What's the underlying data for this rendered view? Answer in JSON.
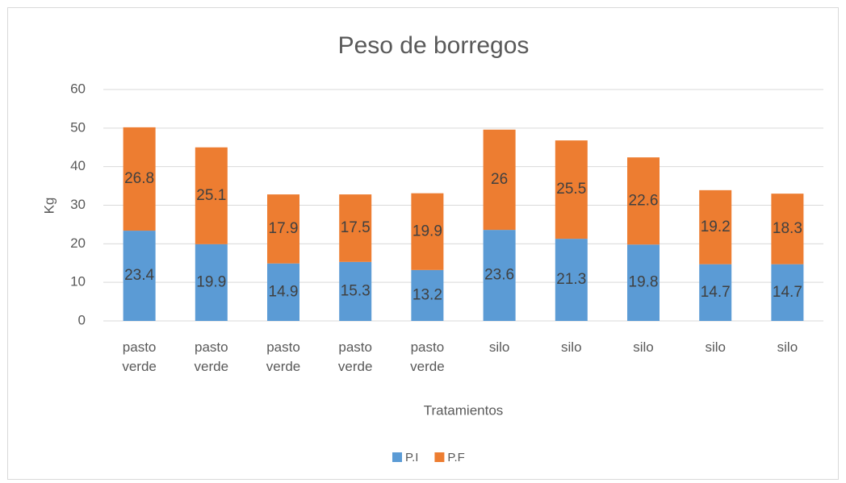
{
  "chart_data": {
    "type": "bar",
    "stacked": true,
    "title": "Peso de borregos",
    "categories": [
      "pasto verde",
      "pasto verde",
      "pasto verde",
      "pasto verde",
      "pasto verde",
      "silo",
      "silo",
      "silo",
      "silo",
      "silo"
    ],
    "series": [
      {
        "name": "P.I",
        "color": "#5b9bd5",
        "values": [
          23.4,
          19.9,
          14.9,
          15.3,
          13.2,
          23.6,
          21.3,
          19.8,
          14.7,
          14.7
        ]
      },
      {
        "name": "P.F",
        "color": "#ed7d31",
        "values": [
          26.8,
          25.1,
          17.9,
          17.5,
          19.9,
          26,
          25.5,
          22.6,
          19.2,
          18.3
        ]
      }
    ],
    "xlabel": "Tratamientos",
    "ylabel": "Kg",
    "ylim": [
      0,
      60
    ],
    "yticks": [
      0,
      10,
      20,
      30,
      40,
      50,
      60
    ],
    "grid": true,
    "legend": "bottom"
  }
}
